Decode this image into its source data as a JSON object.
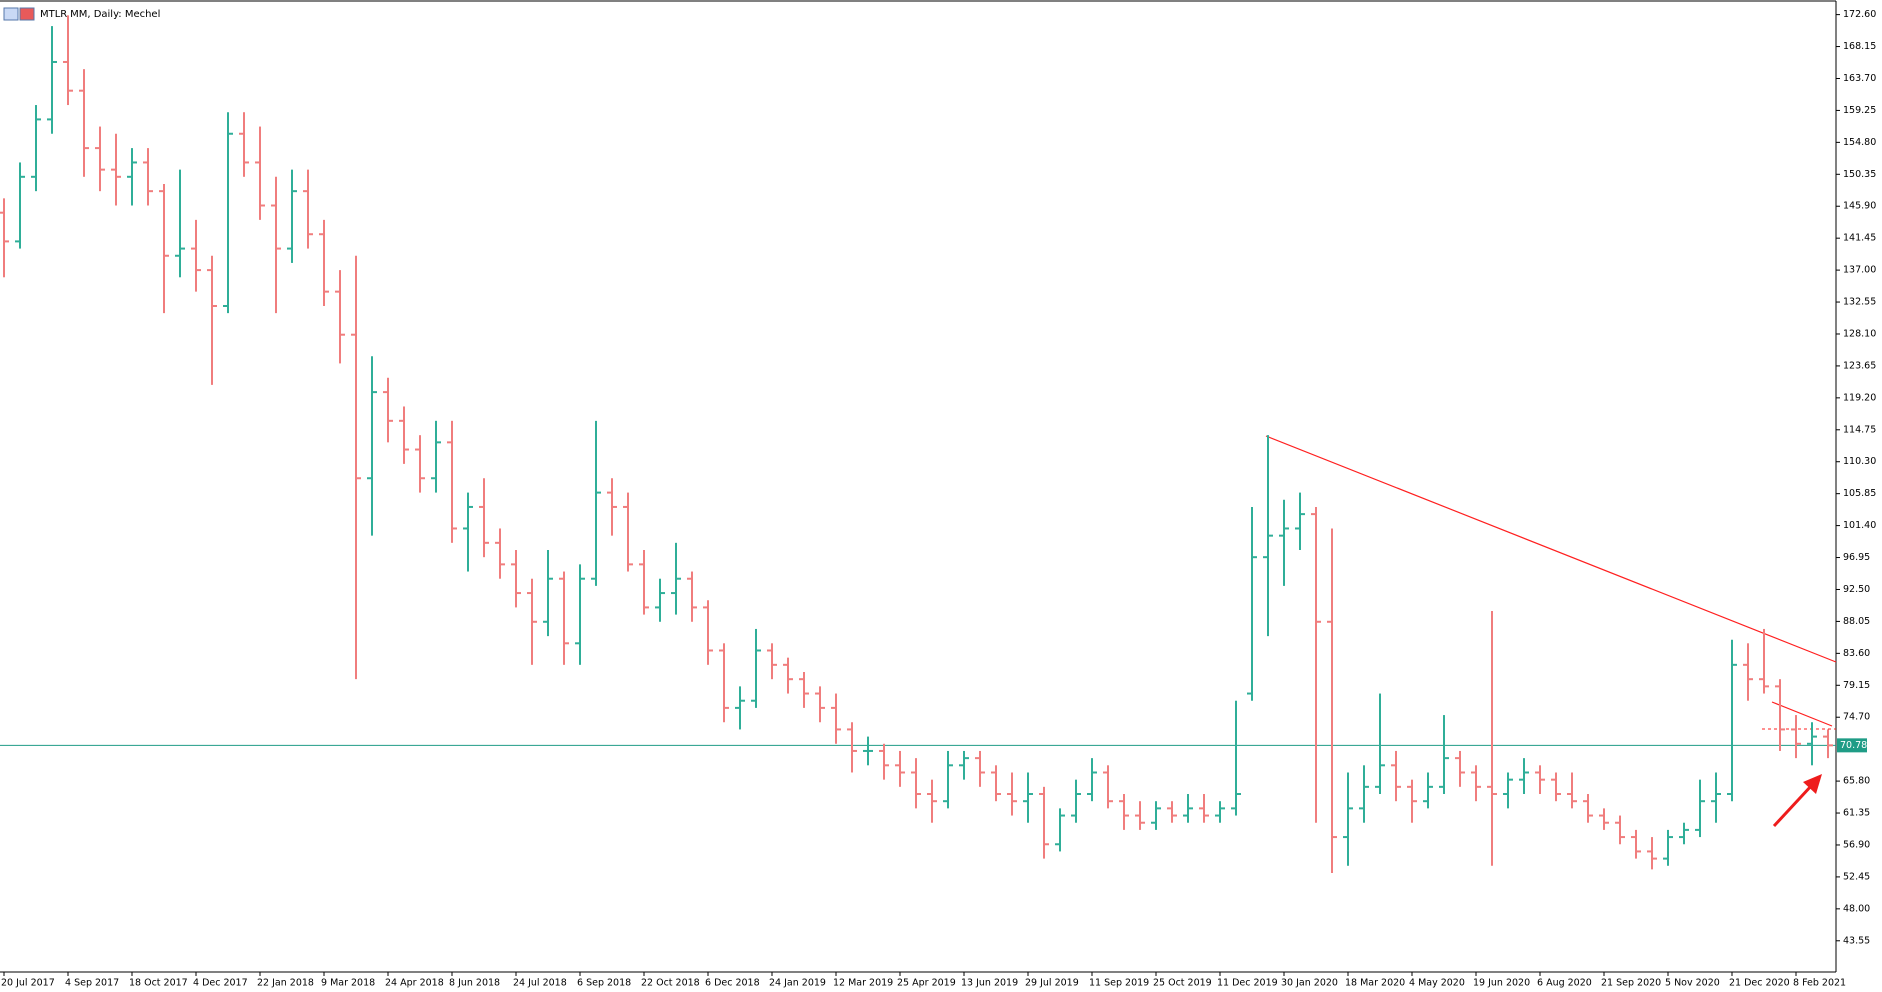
{
  "chart_data": {
    "type": "ohlc",
    "title": "MTLR.MM, Daily:  Mechel",
    "categories": [
      "20 Jul 2017",
      null,
      null,
      null,
      "4 Sep 2017",
      null,
      null,
      null,
      "18 Oct 2017",
      null,
      null,
      null,
      "4 Dec 2017",
      null,
      null,
      null,
      "22 Jan 2018",
      null,
      null,
      null,
      "9 Mar 2018",
      null,
      null,
      null,
      "24 Apr 2018",
      null,
      null,
      null,
      "8 Jun 2018",
      null,
      null,
      null,
      "24 Jul 2018",
      null,
      null,
      null,
      "6 Sep 2018",
      null,
      null,
      null,
      "22 Oct 2018",
      null,
      null,
      null,
      "6 Dec 2018",
      null,
      null,
      null,
      "24 Jan 2019",
      null,
      null,
      null,
      "12 Mar 2019",
      null,
      null,
      null,
      "25 Apr 2019",
      null,
      null,
      null,
      "13 Jun 2019",
      null,
      null,
      null,
      "29 Jul 2019",
      null,
      null,
      null,
      "11 Sep 2019",
      null,
      null,
      null,
      "25 Oct 2019",
      null,
      null,
      null,
      "11 Dec 2019",
      null,
      null,
      null,
      "30 Jan 2020",
      null,
      null,
      null,
      "18 Mar 2020",
      null,
      null,
      null,
      "4 May 2020",
      null,
      null,
      null,
      "19 Jun 2020",
      null,
      null,
      null,
      "6 Aug 2020",
      null,
      null,
      null,
      "21 Sep 2020",
      null,
      null,
      null,
      "5 Nov 2020",
      null,
      null,
      null,
      "21 Dec 2020",
      null,
      null,
      null,
      "8 Feb 2021",
      null,
      null
    ],
    "open": [
      145,
      141,
      150,
      158,
      166,
      162,
      154,
      151,
      150,
      152,
      148,
      139,
      140,
      137,
      132,
      156,
      152,
      146,
      140,
      148,
      142,
      134,
      128,
      108,
      120,
      116,
      112,
      108,
      113,
      101,
      104,
      99,
      96,
      92,
      88,
      94,
      85,
      94,
      106,
      104,
      96,
      90,
      92,
      94,
      90,
      84,
      76,
      77,
      84,
      82,
      80,
      78,
      76,
      73,
      70,
      70,
      68,
      67,
      64,
      63,
      68,
      69,
      67,
      64,
      63,
      64,
      57,
      61,
      64,
      67,
      63,
      61,
      60,
      62,
      61,
      62,
      61,
      62,
      78,
      97,
      100,
      101,
      103,
      88,
      58,
      62,
      65,
      68,
      65,
      63,
      65,
      69,
      67,
      65,
      64,
      66,
      67,
      66,
      64,
      63,
      61,
      60,
      58,
      56,
      55,
      58,
      59,
      63,
      64,
      82,
      80,
      79,
      73,
      71,
      72
    ],
    "high": [
      147,
      152,
      160,
      171,
      172.5,
      165,
      157,
      156,
      154,
      154,
      149,
      151,
      144,
      139,
      159,
      159,
      157,
      150,
      151,
      151,
      144,
      137,
      139,
      125,
      122,
      118,
      114,
      116,
      116,
      106,
      108,
      101,
      98,
      94,
      98,
      95,
      96,
      116,
      108,
      106,
      98,
      94,
      99,
      95,
      91,
      85,
      79,
      87,
      85,
      83,
      81,
      79,
      78,
      74,
      72,
      71,
      70,
      69,
      66,
      70,
      70,
      70,
      68,
      67,
      67,
      65,
      62,
      66,
      69,
      68,
      64,
      63,
      63,
      63,
      64,
      64,
      63,
      77,
      104,
      114,
      105,
      106,
      104,
      101,
      67,
      68,
      78,
      70,
      66,
      67,
      75,
      70,
      68,
      89.5,
      67,
      69,
      68,
      67,
      67,
      64,
      62,
      61,
      59,
      58,
      59,
      60,
      66,
      67,
      85.5,
      85,
      87,
      80,
      75,
      74,
      73
    ],
    "low": [
      136,
      140,
      148,
      156,
      160,
      150,
      148,
      146,
      146,
      146,
      131,
      136,
      134,
      121,
      131,
      150,
      144,
      131,
      138,
      140,
      132,
      124,
      80,
      100,
      113,
      110,
      106,
      106,
      99,
      95,
      97,
      94,
      90,
      82,
      86,
      82,
      82,
      93,
      100,
      95,
      89,
      88,
      89,
      88,
      82,
      74,
      73,
      76,
      80,
      78,
      76,
      74,
      71,
      67,
      68,
      66,
      65,
      62,
      60,
      62,
      66,
      65,
      63,
      61,
      60,
      55,
      56,
      60,
      63,
      62,
      59,
      59,
      59,
      60,
      60,
      60,
      60,
      61,
      77,
      86,
      93,
      98,
      60,
      53,
      54,
      60,
      64,
      63,
      60,
      62,
      64,
      65,
      63,
      54,
      62,
      64,
      64,
      63,
      62,
      60,
      59,
      57,
      55,
      53.5,
      54,
      57,
      58,
      60,
      63,
      77,
      78,
      70,
      69,
      68,
      69
    ],
    "close": [
      141,
      150,
      158,
      166,
      162,
      154,
      151,
      150,
      152,
      148,
      139,
      140,
      137,
      132,
      156,
      152,
      146,
      140,
      148,
      142,
      134,
      128,
      108,
      120,
      116,
      112,
      108,
      113,
      101,
      104,
      99,
      96,
      92,
      88,
      94,
      85,
      94,
      106,
      104,
      96,
      90,
      92,
      94,
      90,
      84,
      76,
      77,
      84,
      82,
      80,
      78,
      76,
      73,
      70,
      70,
      68,
      67,
      64,
      63,
      68,
      69,
      67,
      64,
      63,
      64,
      57,
      61,
      64,
      67,
      63,
      61,
      60,
      62,
      61,
      62,
      61,
      62,
      64,
      97,
      100,
      101,
      103,
      88,
      58,
      62,
      65,
      68,
      65,
      63,
      65,
      69,
      67,
      65,
      64,
      66,
      67,
      66,
      64,
      63,
      61,
      60,
      58,
      56,
      55,
      58,
      59,
      63,
      64,
      82,
      80,
      79,
      73,
      71,
      72,
      70.78
    ],
    "up_color": "#2fae98",
    "down_color": "#f07d7d",
    "bid": 70.78,
    "bid_color": "#1f9c86",
    "ylim": [
      39.2,
      173.8
    ],
    "yticks": [
      {
        "value": 172.6,
        "label": "172.60"
      },
      168.15,
      {
        "value": 163.7,
        "label": "163.70"
      },
      159.25,
      {
        "value": 154.8,
        "label": "154.80"
      },
      150.35,
      {
        "value": 145.9,
        "label": "145.90"
      },
      141.45,
      {
        "value": 137,
        "label": "137.00"
      },
      132.55,
      {
        "value": 128.1,
        "label": "128.10"
      },
      123.65,
      {
        "value": 119.2,
        "label": "119.20"
      },
      114.75,
      {
        "value": 110.3,
        "label": "110.30"
      },
      105.85,
      {
        "value": 101.4,
        "label": "101.40"
      },
      96.95,
      {
        "value": 92.5,
        "label": "92.50"
      },
      88.05,
      {
        "value": 83.6,
        "label": "83.60"
      },
      79.15,
      {
        "value": 74.7,
        "label": "74.70"
      },
      {
        "value": 65.8,
        "label": "65.80"
      },
      61.35,
      {
        "value": 56.9,
        "label": "56.90"
      },
      52.45,
      {
        "value": 48,
        "label": "48.00"
      },
      43.55
    ]
  }
}
